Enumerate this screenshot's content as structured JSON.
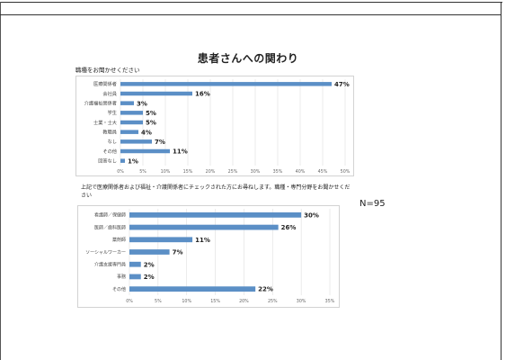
{
  "title": "患者さんへの関わり",
  "n_note": "N=95",
  "chart_data": [
    {
      "type": "bar",
      "orientation": "horizontal",
      "question": "職種をお聞かせください",
      "categories": [
        "医療関係者",
        "会社員",
        "介護福祉関係者",
        "学生",
        "士業・士大",
        "教職員",
        "なし",
        "その他",
        "回答なし"
      ],
      "values": [
        47,
        16,
        3,
        5,
        5,
        4,
        7,
        11,
        1
      ],
      "value_labels": [
        "47%",
        "16%",
        "3%",
        "5%",
        "5%",
        "4%",
        "7%",
        "11%",
        "1%"
      ],
      "xlim": [
        0,
        50
      ],
      "ticks": [
        "0%",
        "5%",
        "10%",
        "15%",
        "20%",
        "25%",
        "30%",
        "35%",
        "40%",
        "45%",
        "50%"
      ],
      "bar_color": "#5b8fc6",
      "grid": true
    },
    {
      "type": "bar",
      "orientation": "horizontal",
      "question": "上記で医療関係者および福祉・介護関係者にチェックされた方にお尋ねします。職種・専門分野をお聞かせください",
      "categories": [
        "看護師／保健師",
        "医師／歯科医師",
        "薬剤師",
        "ソーシャルワーカー",
        "介護支援専門員",
        "事務",
        "その他"
      ],
      "values": [
        30,
        26,
        11,
        7,
        2,
        2,
        22
      ],
      "value_labels": [
        "30%",
        "26%",
        "11%",
        "7%",
        "2%",
        "2%",
        "22%"
      ],
      "xlim": [
        0,
        35
      ],
      "ticks": [
        "0%",
        "5%",
        "10%",
        "15%",
        "20%",
        "25%",
        "30%",
        "35%"
      ],
      "bar_color": "#5b8fc6",
      "grid": true
    }
  ]
}
